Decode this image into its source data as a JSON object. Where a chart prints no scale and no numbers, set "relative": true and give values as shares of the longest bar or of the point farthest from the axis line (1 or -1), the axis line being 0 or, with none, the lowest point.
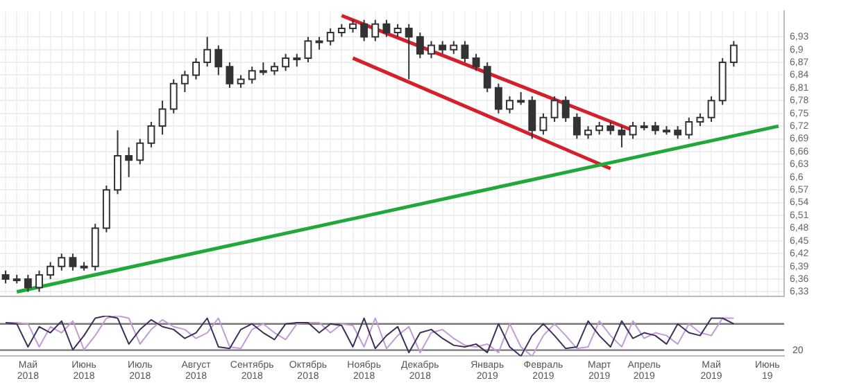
{
  "chart_data": [
    {
      "type": "candlestick",
      "tick_labels": "y",
      "grid": true,
      "color": "#333333",
      "colors": [
        "#333333",
        "#ffffff",
        "#333333",
        "#ffffff",
        "#ffffff",
        "#ffffff",
        "#333333",
        "#ffffff",
        "#ffffff",
        "#ffffff",
        "#ffffff",
        "#333333",
        "#ffffff",
        "#ffffff",
        "#ffffff",
        "#ffffff",
        "#ffffff",
        "#ffffff",
        "#ffffff",
        "#333333",
        "#333333",
        "#ffffff",
        "#ffffff",
        "#ffffff",
        "#ffffff",
        "#ffffff",
        "#ffffff",
        "#ffffff",
        "#ffffff",
        "#ffffff",
        "#ffffff",
        "#ffffff",
        "#333333",
        "#ffffff",
        "#333333",
        "#ffffff",
        "#333333",
        "#333333",
        "#ffffff",
        "#333333",
        "#ffffff",
        "#333333",
        "#333333",
        "#333333",
        "#333333",
        "#ffffff",
        "#ffffff",
        "#333333",
        "#ffffff",
        "#ffffff",
        "#333333",
        "#333333",
        "#ffffff",
        "#ffffff",
        "#333333",
        "#333333",
        "#ffffff",
        "#ffffff",
        "#333333",
        "#ffffff",
        "#333333",
        "#ffffff",
        "#ffffff",
        "#ffffff",
        "#ffffff",
        "#ffffff",
        null,
        null,
        null,
        null
      ],
      "categories": [
        null,
        null,
        null,
        null,
        null,
        null,
        null,
        null,
        null,
        null,
        null,
        null,
        null,
        null,
        null,
        null,
        null,
        null,
        null,
        null,
        null,
        null,
        null,
        null,
        null,
        null,
        null,
        null,
        null,
        null,
        null,
        null,
        null,
        null,
        null,
        null,
        null,
        null,
        null,
        null,
        null,
        null,
        null,
        null,
        null,
        null,
        null,
        null,
        null,
        null,
        null,
        null,
        null,
        null,
        null,
        null,
        null,
        null,
        null,
        null,
        null,
        null,
        null,
        null,
        null,
        null,
        null,
        null,
        null,
        null
      ],
      "ylim": [
        6.32,
        6.99
      ],
      "yticks": [
        {
          "value": 6.33,
          "label": "6,33"
        },
        {
          "value": 6.36,
          "label": "6,36"
        },
        {
          "value": 6.39,
          "label": "6,39"
        },
        {
          "value": 6.42,
          "label": "6,42"
        },
        {
          "value": 6.45,
          "label": "6,45"
        },
        {
          "value": 6.48,
          "label": "6,48"
        },
        {
          "value": 6.51,
          "label": "6,51"
        },
        {
          "value": 6.54,
          "label": "6,54"
        },
        {
          "value": 6.57,
          "label": "6,57"
        },
        {
          "value": 6.6,
          "label": "6,6"
        },
        {
          "value": 6.63,
          "label": "6,63"
        },
        {
          "value": 6.66,
          "label": "6,66"
        },
        {
          "value": 6.69,
          "label": "6,69"
        },
        {
          "value": 6.72,
          "label": "6,72"
        },
        {
          "value": 6.75,
          "label": "6,75"
        },
        {
          "value": 6.78,
          "label": "6,78"
        },
        {
          "value": 6.81,
          "label": "6,81"
        },
        {
          "value": 6.84,
          "label": "6,84"
        },
        {
          "value": 6.87,
          "label": "6,87"
        },
        {
          "value": 6.9,
          "label": "6,9"
        },
        {
          "value": 6.93,
          "label": "6,93"
        }
      ],
      "ohlc": [
        [
          6.37,
          6.38,
          6.35,
          6.36
        ],
        [
          6.36,
          6.37,
          6.35,
          6.36
        ],
        [
          6.36,
          6.37,
          6.33,
          6.34
        ],
        [
          6.34,
          6.38,
          6.33,
          6.37
        ],
        [
          6.37,
          6.4,
          6.36,
          6.39
        ],
        [
          6.39,
          6.42,
          6.38,
          6.41
        ],
        [
          6.41,
          6.42,
          6.38,
          6.39
        ],
        [
          6.39,
          6.4,
          6.38,
          6.39
        ],
        [
          6.39,
          6.49,
          6.38,
          6.48
        ],
        [
          6.48,
          6.58,
          6.47,
          6.57
        ],
        [
          6.57,
          6.71,
          6.56,
          6.65
        ],
        [
          6.65,
          6.67,
          6.6,
          6.64
        ],
        [
          6.64,
          6.69,
          6.63,
          6.68
        ],
        [
          6.68,
          6.73,
          6.67,
          6.72
        ],
        [
          6.72,
          6.78,
          6.7,
          6.76
        ],
        [
          6.76,
          6.83,
          6.75,
          6.82
        ],
        [
          6.82,
          6.85,
          6.8,
          6.84
        ],
        [
          6.84,
          6.88,
          6.83,
          6.87
        ],
        [
          6.87,
          6.93,
          6.86,
          6.9
        ],
        [
          6.9,
          6.91,
          6.84,
          6.86
        ],
        [
          6.86,
          6.87,
          6.81,
          6.82
        ],
        [
          6.82,
          6.84,
          6.81,
          6.83
        ],
        [
          6.83,
          6.86,
          6.82,
          6.85
        ],
        [
          6.85,
          6.87,
          6.84,
          6.85
        ],
        [
          6.85,
          6.87,
          6.84,
          6.86
        ],
        [
          6.86,
          6.89,
          6.85,
          6.88
        ],
        [
          6.88,
          6.89,
          6.86,
          6.88
        ],
        [
          6.88,
          6.93,
          6.87,
          6.92
        ],
        [
          6.92,
          6.93,
          6.9,
          6.92
        ],
        [
          6.92,
          6.95,
          6.91,
          6.94
        ],
        [
          6.94,
          6.96,
          6.93,
          6.95
        ],
        [
          6.95,
          6.97,
          6.94,
          6.96
        ],
        [
          6.96,
          6.97,
          6.92,
          6.93
        ],
        [
          6.93,
          6.97,
          6.92,
          6.96
        ],
        [
          6.96,
          6.97,
          6.93,
          6.94
        ],
        [
          6.94,
          6.96,
          6.93,
          6.95
        ],
        [
          6.95,
          6.96,
          6.83,
          6.93
        ],
        [
          6.93,
          6.94,
          6.88,
          6.89
        ],
        [
          6.89,
          6.92,
          6.88,
          6.91
        ],
        [
          6.91,
          6.92,
          6.89,
          6.9
        ],
        [
          6.9,
          6.92,
          6.89,
          6.91
        ],
        [
          6.91,
          6.92,
          6.87,
          6.88
        ],
        [
          6.88,
          6.89,
          6.85,
          6.86
        ],
        [
          6.86,
          6.87,
          6.8,
          6.81
        ],
        [
          6.81,
          6.82,
          6.75,
          6.76
        ],
        [
          6.76,
          6.79,
          6.75,
          6.78
        ],
        [
          6.78,
          6.8,
          6.77,
          6.78
        ],
        [
          6.78,
          6.79,
          6.69,
          6.71
        ],
        [
          6.71,
          6.75,
          6.7,
          6.74
        ],
        [
          6.74,
          6.79,
          6.73,
          6.78
        ],
        [
          6.78,
          6.79,
          6.73,
          6.74
        ],
        [
          6.74,
          6.75,
          6.69,
          6.7
        ],
        [
          6.7,
          6.72,
          6.69,
          6.71
        ],
        [
          6.71,
          6.73,
          6.7,
          6.72
        ],
        [
          6.72,
          6.73,
          6.7,
          6.71
        ],
        [
          6.71,
          6.72,
          6.67,
          6.7
        ],
        [
          6.7,
          6.73,
          6.69,
          6.72
        ],
        [
          6.72,
          6.73,
          6.71,
          6.72
        ],
        [
          6.72,
          6.73,
          6.7,
          6.71
        ],
        [
          6.71,
          6.72,
          6.7,
          6.71
        ],
        [
          6.71,
          6.72,
          6.69,
          6.7
        ],
        [
          6.7,
          6.74,
          6.69,
          6.73
        ],
        [
          6.73,
          6.75,
          6.72,
          6.74
        ],
        [
          6.74,
          6.79,
          6.73,
          6.78
        ],
        [
          6.78,
          6.88,
          6.77,
          6.87
        ],
        [
          6.87,
          6.92,
          6.86,
          6.91
        ],
        null,
        null,
        null,
        null
      ],
      "series": [
        {
          "type": "line",
          "color": "#22a83a",
          "values": [
            null,
            6.33,
            null,
            null,
            null,
            null,
            null,
            null,
            null,
            null,
            null,
            null,
            null,
            null,
            null,
            null,
            null,
            null,
            null,
            null,
            null,
            null,
            null,
            null,
            null,
            null,
            null,
            null,
            null,
            null,
            null,
            null,
            null,
            null,
            null,
            null,
            null,
            null,
            null,
            null,
            null,
            null,
            null,
            null,
            null,
            null,
            null,
            null,
            null,
            null,
            null,
            null,
            null,
            null,
            null,
            null,
            null,
            null,
            null,
            null,
            null,
            null,
            null,
            null,
            null,
            null,
            null,
            null,
            null,
            6.72
          ]
        },
        {
          "type": "line",
          "color": "#d4202a",
          "values": [
            null,
            null,
            null,
            null,
            null,
            null,
            null,
            null,
            null,
            null,
            null,
            null,
            null,
            null,
            null,
            null,
            null,
            null,
            null,
            null,
            null,
            null,
            null,
            null,
            null,
            null,
            null,
            null,
            null,
            null,
            6.98,
            null,
            null,
            null,
            null,
            null,
            null,
            null,
            null,
            null,
            null,
            null,
            null,
            null,
            null,
            null,
            null,
            null,
            null,
            null,
            null,
            null,
            null,
            null,
            null,
            null,
            6.71,
            null,
            null,
            null,
            null,
            null,
            null,
            null,
            null,
            null,
            null,
            null,
            null,
            null
          ]
        },
        {
          "type": "line",
          "color": "#d4202a",
          "values": [
            null,
            null,
            null,
            null,
            null,
            null,
            null,
            null,
            null,
            null,
            null,
            null,
            null,
            null,
            null,
            null,
            null,
            null,
            null,
            null,
            null,
            null,
            null,
            null,
            null,
            null,
            null,
            null,
            null,
            null,
            null,
            6.88,
            null,
            null,
            null,
            null,
            null,
            null,
            null,
            null,
            null,
            null,
            null,
            null,
            null,
            null,
            null,
            null,
            null,
            null,
            null,
            null,
            null,
            null,
            6.62,
            null,
            null,
            null,
            null,
            null,
            null,
            null,
            null,
            null,
            null,
            null,
            null,
            null,
            null,
            null
          ]
        }
      ]
    },
    {
      "type": "line",
      "relative": true,
      "tick_labels": "x",
      "grid": false,
      "categories": [
        null,
        null,
        "Май 2018",
        null,
        null,
        null,
        null,
        "Июнь 2018",
        null,
        null,
        null,
        null,
        "Июль 2018",
        null,
        null,
        null,
        null,
        "Август 2018",
        null,
        null,
        null,
        null,
        "Сентябрь 2018",
        null,
        null,
        null,
        null,
        "Октябрь 2018",
        null,
        null,
        null,
        null,
        "Ноябрь 2018",
        null,
        null,
        null,
        null,
        "Декабрь 2018",
        null,
        null,
        null,
        null,
        null,
        "Январь 2019",
        null,
        null,
        null,
        null,
        "Февраль 2019",
        null,
        null,
        null,
        null,
        "Март 2019",
        null,
        null,
        null,
        "Апрель 2019",
        null,
        null,
        null,
        null,
        null,
        "Май 2019",
        null,
        null,
        null,
        null,
        "Июнь 19",
        null
      ],
      "ref_lines": [
        {
          "axis": "y",
          "value": 0.8,
          "label": null,
          "color": "#777777"
        },
        {
          "axis": "y",
          "value": 0.15,
          "label": null,
          "color": "#777777"
        }
      ],
      "annotations": [
        "20"
      ],
      "series": [
        {
          "color": "#3d2f5c",
          "values": [
            0.83,
            0.8,
            0.23,
            0.73,
            0.58,
            0.87,
            0.16,
            0.51,
            0.94,
            1.0,
            0.94,
            0.3,
            0.66,
            0.9,
            0.73,
            0.66,
            0.44,
            0.58,
            0.94,
            0.23,
            0.19,
            0.66,
            0.8,
            0.58,
            0.41,
            0.8,
            0.83,
            0.83,
            0.58,
            0.8,
            0.76,
            0.23,
            0.94,
            0.19,
            0.51,
            0.73,
            0.09,
            0.58,
            0.66,
            0.44,
            0.27,
            0.23,
            0.3,
            0.09,
            0.8,
            0.23,
            0.0,
            0.51,
            0.8,
            0.51,
            0.19,
            0.23,
            0.87,
            0.51,
            0.23,
            0.87,
            0.44,
            0.58,
            0.51,
            0.3,
            0.8,
            0.58,
            0.51,
            0.94,
            0.94,
            0.8,
            null,
            null,
            null,
            null
          ]
        },
        {
          "color": "#c49ad6",
          "values": [
            0.83,
            0.83,
            0.8,
            0.23,
            0.73,
            0.58,
            0.87,
            0.16,
            0.51,
            0.94,
            1.0,
            0.94,
            0.3,
            0.66,
            0.9,
            0.73,
            0.66,
            0.44,
            0.58,
            0.94,
            0.23,
            0.19,
            0.66,
            0.8,
            0.58,
            0.41,
            0.8,
            0.83,
            0.83,
            0.58,
            0.8,
            0.76,
            0.23,
            0.94,
            0.19,
            0.51,
            0.73,
            0.09,
            0.58,
            0.66,
            0.44,
            0.27,
            0.23,
            0.3,
            0.09,
            0.8,
            0.23,
            0.0,
            0.51,
            0.8,
            0.51,
            0.19,
            0.23,
            0.87,
            0.51,
            0.23,
            0.87,
            0.44,
            0.58,
            0.51,
            0.3,
            0.8,
            0.58,
            0.51,
            0.94,
            0.94,
            null,
            null,
            null,
            null
          ]
        }
      ]
    }
  ]
}
